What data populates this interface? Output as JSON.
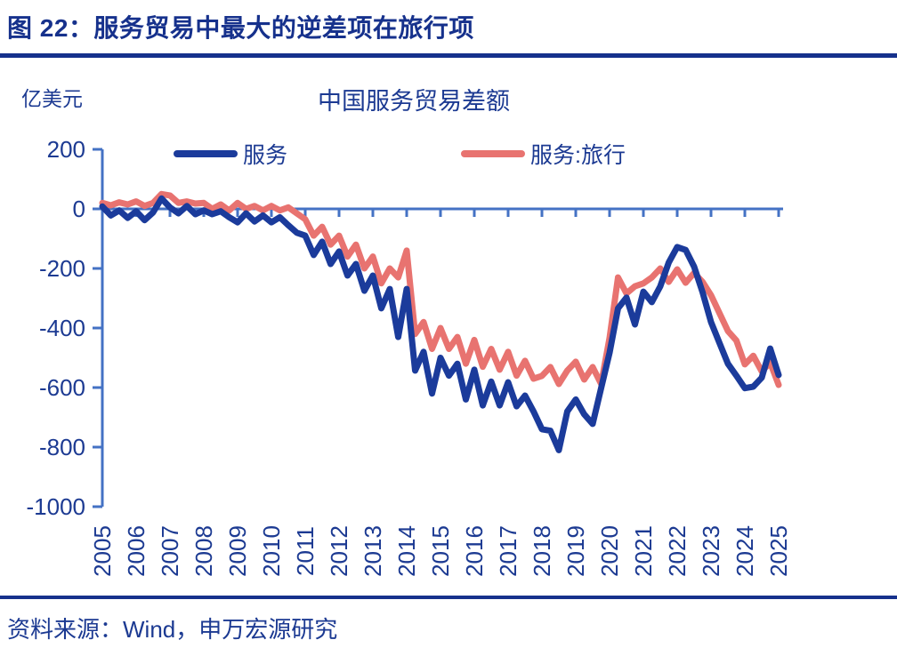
{
  "header": {
    "title": "图 22：服务贸易中最大的逆差项在旅行项"
  },
  "source": {
    "text": "资料来源：Wind，申万宏源研究"
  },
  "colors": {
    "navy_text": "#1c3a92",
    "header_navy": "#16318c",
    "services_line": "#1b3b9b",
    "travel_line": "#e87370",
    "axis_blue": "#4472c4",
    "background": "#ffffff"
  },
  "chart_data": {
    "type": "line",
    "title": "中国服务贸易差额",
    "unit_label": "亿美元",
    "xlabel": "",
    "ylabel": "亿美元",
    "x_start_year": 2005,
    "points_per_year": 4,
    "x_tick_labels": [
      "2005",
      "2006",
      "2007",
      "2008",
      "2009",
      "2010",
      "2011",
      "2012",
      "2013",
      "2014",
      "2015",
      "2016",
      "2017",
      "2018",
      "2019",
      "2020",
      "2021",
      "2022",
      "2023",
      "2024",
      "2025"
    ],
    "y_ticks": [
      200,
      0,
      -200,
      -400,
      -600,
      -800,
      -1000
    ],
    "ylim": [
      -1000,
      200
    ],
    "grid": false,
    "legend_position": "top",
    "series": [
      {
        "name": "服务",
        "color": "#1b3b9b",
        "values": [
          8,
          -22,
          -5,
          -30,
          -8,
          -38,
          -12,
          35,
          5,
          -15,
          10,
          -18,
          -5,
          -18,
          -8,
          -28,
          -45,
          -15,
          -42,
          -22,
          -45,
          -28,
          -55,
          -80,
          -90,
          -155,
          -110,
          -185,
          -143,
          -224,
          -185,
          -275,
          -224,
          -334,
          -269,
          -430,
          -269,
          -543,
          -480,
          -620,
          -500,
          -560,
          -520,
          -640,
          -540,
          -660,
          -580,
          -660,
          -582,
          -663,
          -627,
          -680,
          -740,
          -745,
          -810,
          -680,
          -640,
          -690,
          -722,
          -602,
          -483,
          -334,
          -298,
          -388,
          -278,
          -313,
          -260,
          -180,
          -128,
          -138,
          -194,
          -280,
          -380,
          -450,
          -520,
          -560,
          -602,
          -597,
          -567,
          -469,
          -558
        ]
      },
      {
        "name": "服务:旅行",
        "color": "#e87370",
        "values": [
          20,
          12,
          22,
          15,
          25,
          10,
          20,
          50,
          45,
          20,
          25,
          18,
          20,
          0,
          15,
          -5,
          20,
          0,
          10,
          -5,
          10,
          -5,
          5,
          -15,
          -35,
          -90,
          -60,
          -120,
          -90,
          -160,
          -120,
          -200,
          -160,
          -250,
          -200,
          -230,
          -140,
          -420,
          -380,
          -470,
          -400,
          -470,
          -430,
          -520,
          -440,
          -530,
          -470,
          -540,
          -480,
          -560,
          -510,
          -570,
          -561,
          -531,
          -588,
          -543,
          -513,
          -573,
          -531,
          -588,
          -433,
          -230,
          -284,
          -260,
          -250,
          -230,
          -200,
          -245,
          -203,
          -248,
          -215,
          -245,
          -290,
          -350,
          -410,
          -442,
          -522,
          -493,
          -546,
          -516,
          -591
        ]
      }
    ]
  }
}
